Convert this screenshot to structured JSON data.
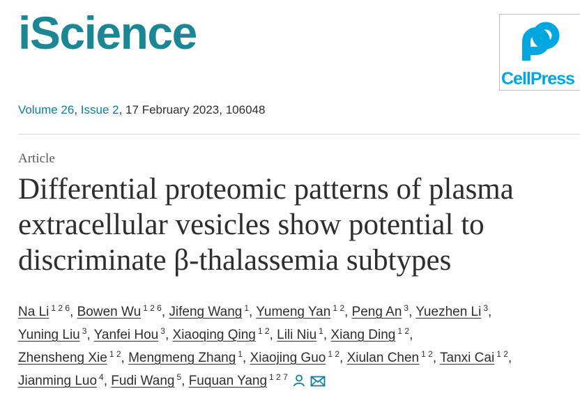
{
  "header": {
    "journal": "iScience",
    "logo_text": "CellPress"
  },
  "issue": {
    "volume": "Volume 26",
    "issue": "Issue 2",
    "date_id": ", 17 February 2023, 106048"
  },
  "article": {
    "type": "Article",
    "title_lines": [
      "Differential proteomic patterns of plasma",
      "extracellular vesicles show potential to",
      "discriminate β-thalassemia subtypes"
    ]
  },
  "author_lines": [
    [
      {
        "name": "Na Li",
        "aff": "1 2 6"
      },
      {
        "name": "Bowen Wu",
        "aff": "1 2 6"
      },
      {
        "name": "Jifeng Wang",
        "aff": "1"
      },
      {
        "name": "Yumeng Yan",
        "aff": "1 2"
      },
      {
        "name": "Peng An",
        "aff": "3"
      },
      {
        "name": "Yuezhen Li",
        "aff": "3"
      }
    ],
    [
      {
        "name": "Yuning Liu",
        "aff": "3"
      },
      {
        "name": "Yanfei Hou",
        "aff": "3"
      },
      {
        "name": "Xiaoqing Qing",
        "aff": "1 2"
      },
      {
        "name": "Lili Niu",
        "aff": "1"
      },
      {
        "name": "Xiang Ding",
        "aff": "1 2"
      }
    ],
    [
      {
        "name": "Zhensheng Xie",
        "aff": "1 2"
      },
      {
        "name": "Mengmeng Zhang",
        "aff": "1"
      },
      {
        "name": "Xiaojing Guo",
        "aff": "1 2"
      },
      {
        "name": "Xiulan Chen",
        "aff": "1 2"
      },
      {
        "name": "Tanxi Cai",
        "aff": "1 2"
      }
    ],
    [
      {
        "name": "Jianming Luo",
        "aff": "4"
      },
      {
        "name": "Fudi Wang",
        "aff": "5"
      },
      {
        "name": "Fuquan Yang",
        "aff": "1 2 7"
      }
    ]
  ],
  "icons": {
    "person": "person-icon",
    "email": "envelope-icon",
    "accent": "#1b8794",
    "link": "#0c7d9d",
    "cellpress_blue": "#00a6e0"
  }
}
